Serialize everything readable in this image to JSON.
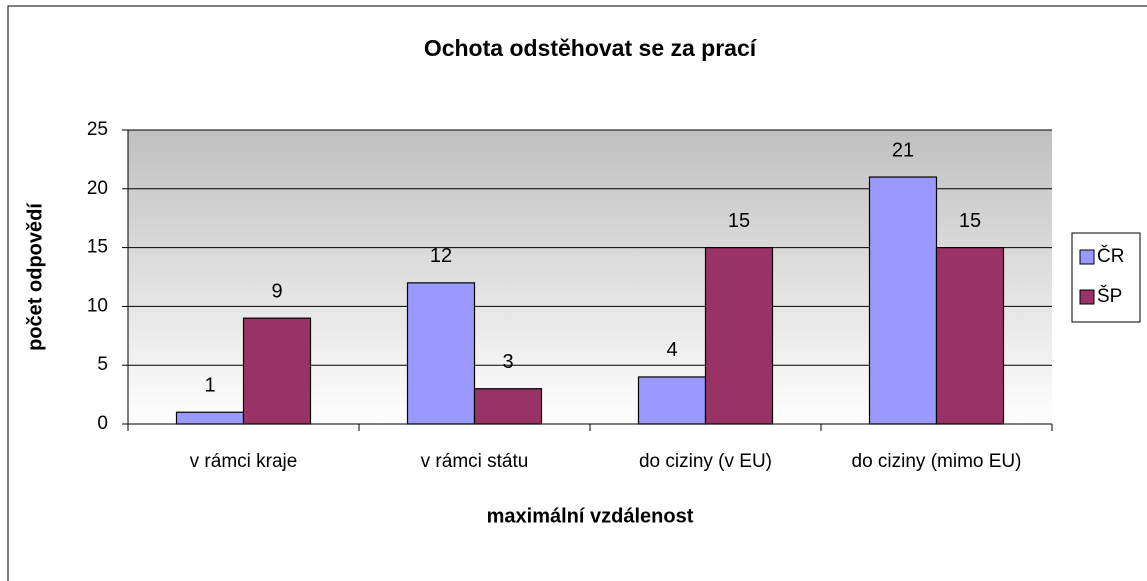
{
  "chart_data": {
    "type": "bar",
    "title": "Ochota odstěhovat se za prací",
    "xlabel": "maximální vzdálenost",
    "ylabel": "počet odpovědí",
    "categories": [
      "v rámci kraje",
      "v rámci státu",
      "do ciziny (v EU)",
      "do ciziny (mimo EU)"
    ],
    "series": [
      {
        "name": "ČR",
        "color": "#9999ff",
        "values": [
          1,
          12,
          4,
          21
        ]
      },
      {
        "name": "ŠP",
        "color": "#993366",
        "values": [
          9,
          3,
          15,
          15
        ]
      }
    ],
    "ylim": [
      0,
      25
    ],
    "yticks": [
      0,
      5,
      10,
      15,
      20,
      25
    ],
    "grid": true,
    "legend": "right"
  }
}
